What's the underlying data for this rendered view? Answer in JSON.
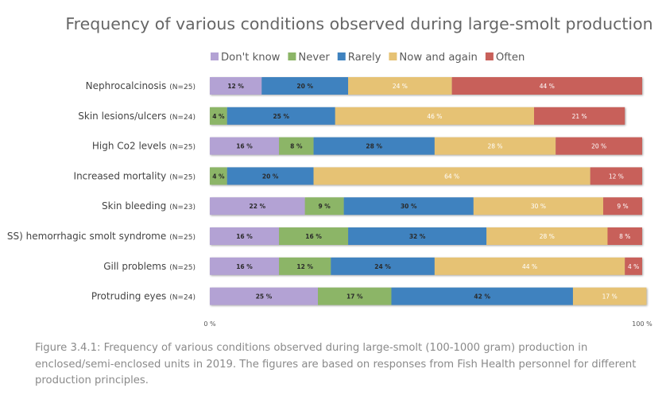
{
  "chart_data": {
    "type": "bar",
    "orientation": "horizontal",
    "stacked": "percent",
    "title": "Frequency of various conditions observed during large-smolt production",
    "categories": [
      "Nephrocalcinosis",
      "Skin lesions/ulcers",
      "High Co2 levels",
      "Increased mortality",
      "Skin bleeding",
      "SS) hemorrhagic smolt syndrome",
      "Gill problems",
      "Protruding eyes"
    ],
    "sample_sizes": [
      "(N=25)",
      "(N=24)",
      "(N=25)",
      "(N=25)",
      "(N=23)",
      "(N=25)",
      "(N=25)",
      "(N=24)"
    ],
    "series": [
      {
        "name": "Don't know",
        "color": "#b3a2d4",
        "values": [
          12,
          0,
          16,
          0,
          22,
          16,
          16,
          25
        ]
      },
      {
        "name": "Never",
        "color": "#8cb567",
        "values": [
          0,
          4,
          8,
          4,
          9,
          16,
          12,
          17
        ]
      },
      {
        "name": "Rarely",
        "color": "#3f82bf",
        "values": [
          20,
          25,
          28,
          20,
          30,
          32,
          24,
          42
        ]
      },
      {
        "name": "Now and again",
        "color": "#e6c274",
        "values": [
          24,
          46,
          28,
          64,
          30,
          28,
          44,
          17
        ]
      },
      {
        "name": "Often",
        "color": "#c8605a",
        "values": [
          44,
          21,
          20,
          12,
          9,
          8,
          4,
          0
        ]
      }
    ],
    "segment_labels": [
      [
        "12 %",
        "",
        "20 %",
        "24 %",
        "44 %"
      ],
      [
        "",
        "4 %",
        "25 %",
        "46 %",
        "21 %"
      ],
      [
        "16 %",
        "8 %",
        "28 %",
        "28 %",
        "20 %"
      ],
      [
        "",
        "4 %",
        "20 %",
        "64 %",
        "12 %"
      ],
      [
        "22 %",
        "9 %",
        "30 %",
        "30 %",
        "9 %"
      ],
      [
        "16 %",
        "16 %",
        "32 %",
        "28 %",
        "8 %"
      ],
      [
        "16 %",
        "12 %",
        "24 %",
        "44 %",
        "4 %"
      ],
      [
        "25 %",
        "17 %",
        "42 %",
        "17 %",
        ""
      ]
    ],
    "xlim": [
      0,
      100
    ],
    "x_tick_labels": [
      "0 %",
      "100 %"
    ],
    "legend_position": "top",
    "grid": false
  },
  "caption": "Figure 3.4.1: Frequency of various conditions observed during large-smolt (100-1000 gram) production in enclosed/semi-enclosed units in 2019. The figures are based on responses from Fish Health personnel for different production principles."
}
